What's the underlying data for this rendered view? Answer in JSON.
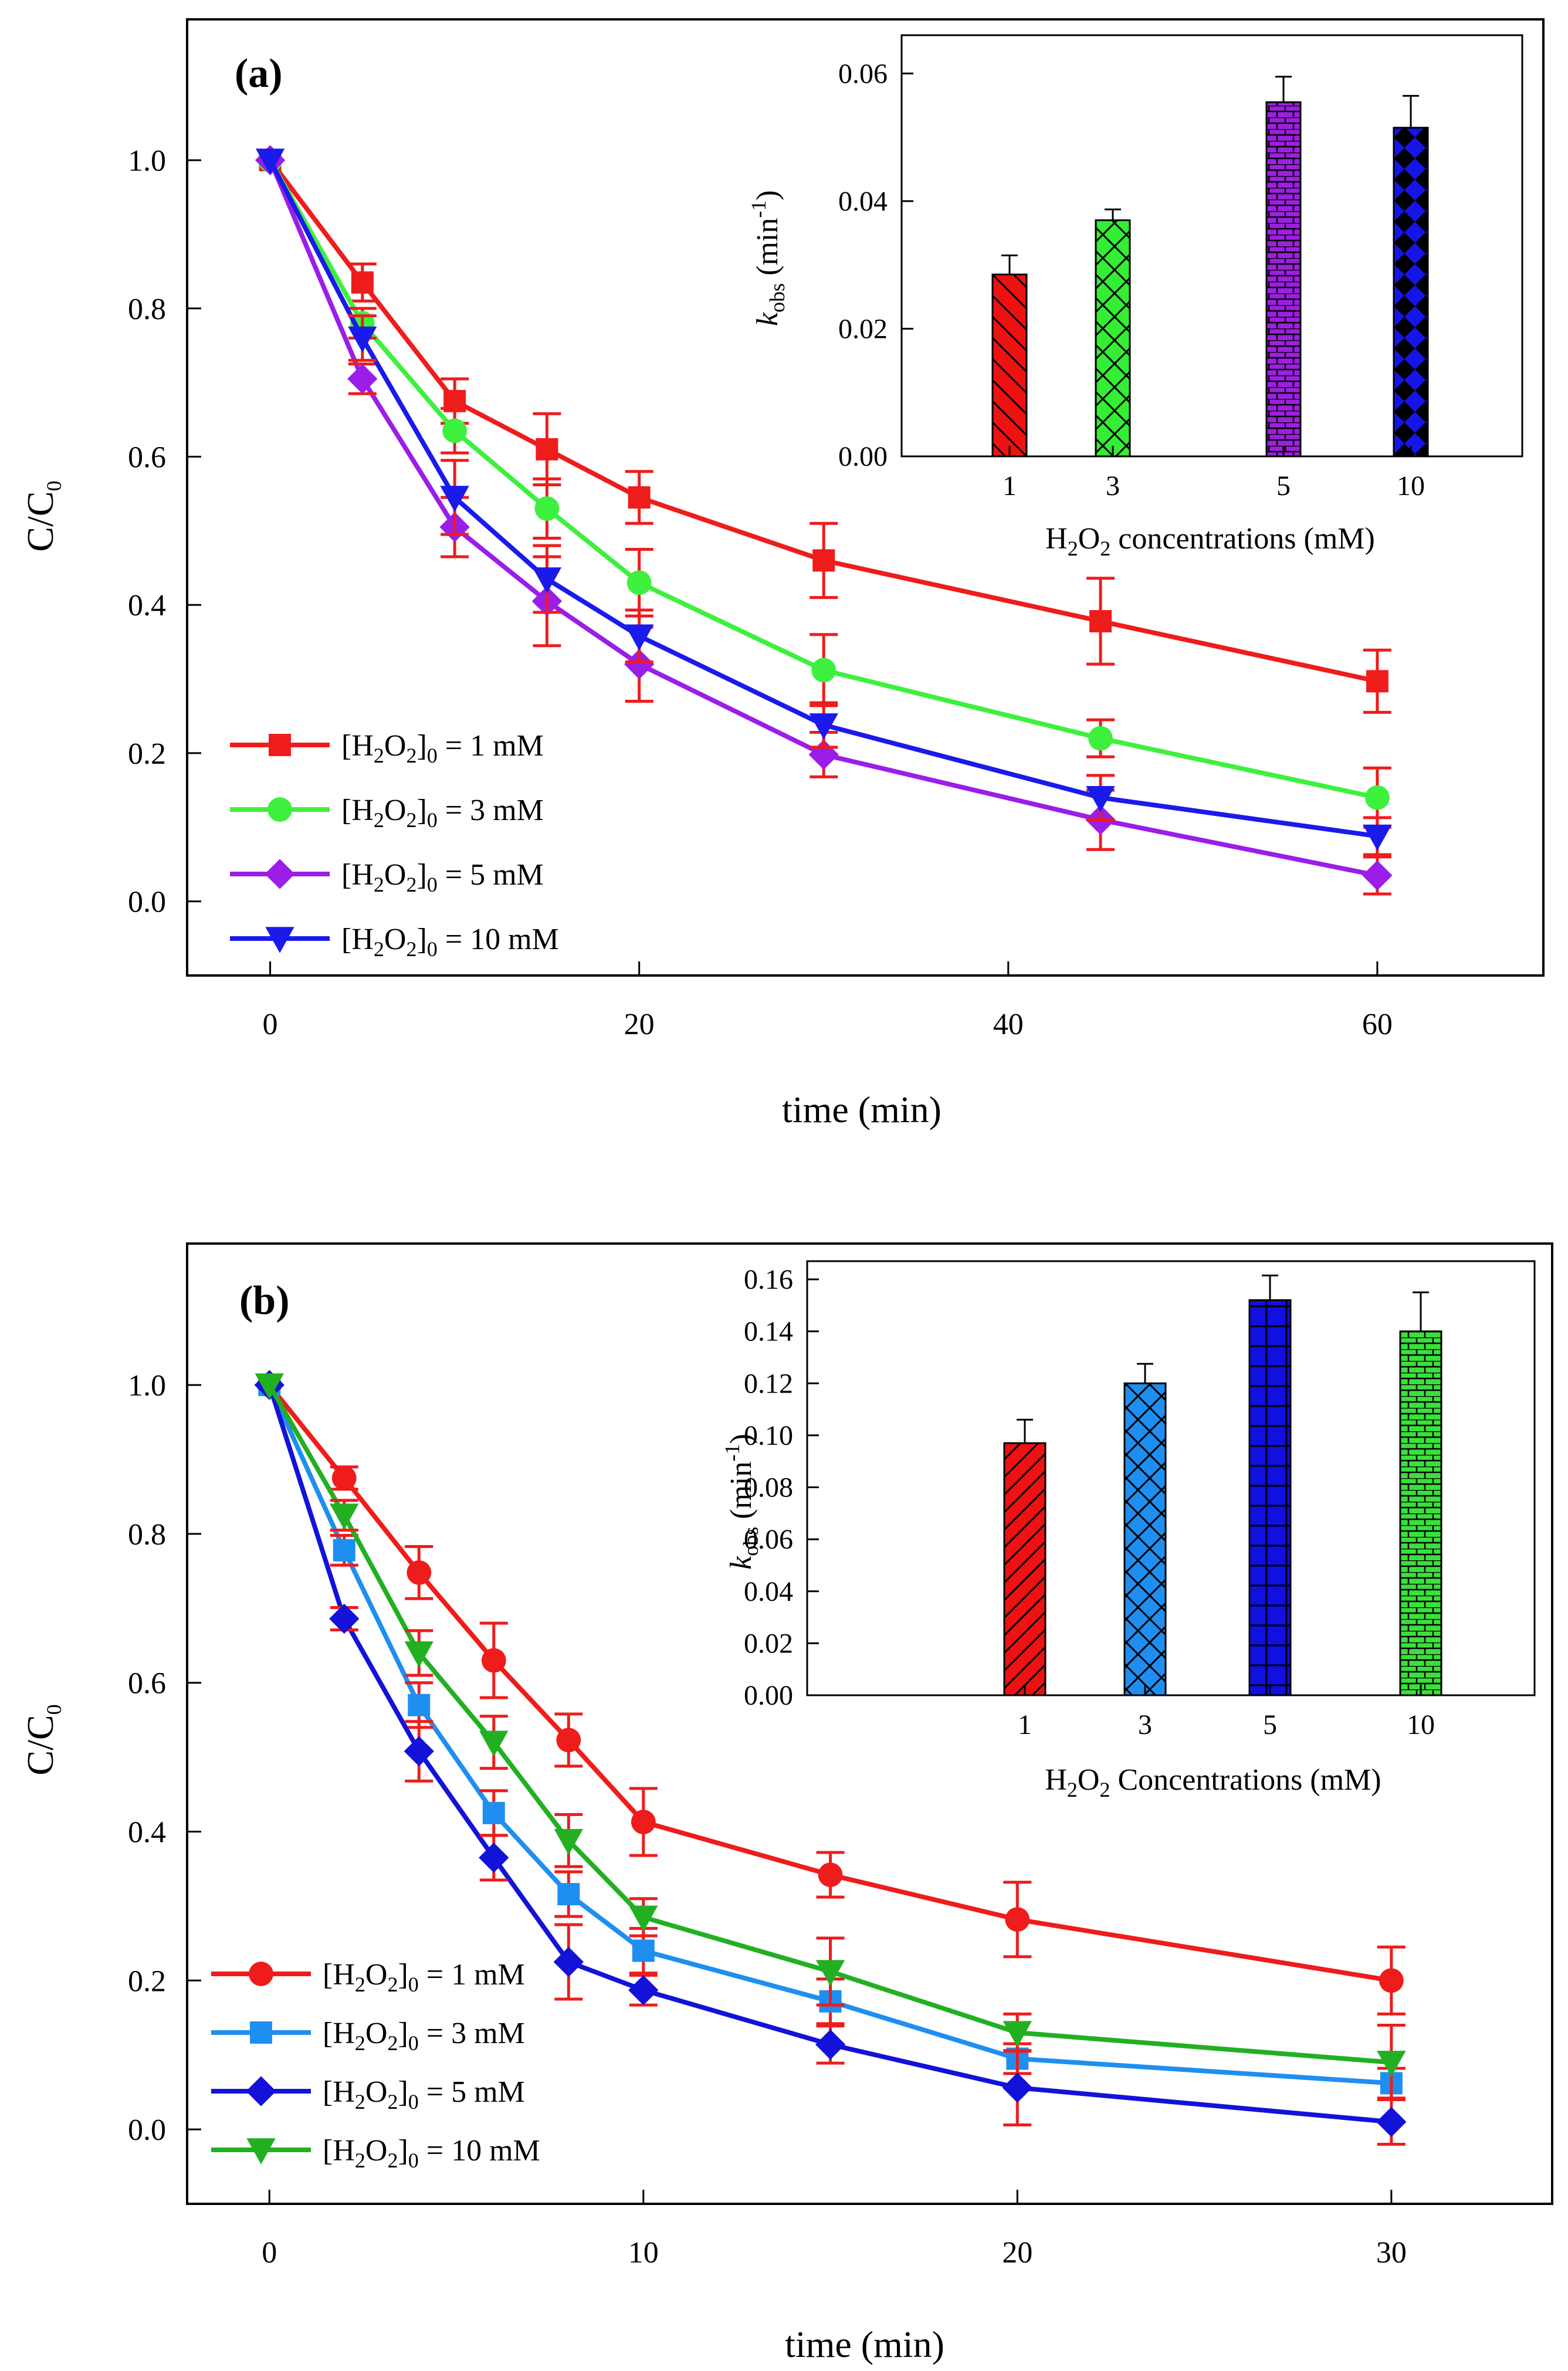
{
  "chart_data": [
    {
      "type": "line",
      "panel_label": "(a)",
      "xlabel": "time (min)",
      "ylabel": {
        "main": "C/C",
        "sub": "0"
      },
      "xlim": [
        -4.5,
        69
      ],
      "ylim": [
        -0.1,
        1.19
      ],
      "xticks": [
        0,
        20,
        40,
        60
      ],
      "yticks": [
        0.0,
        0.2,
        0.4,
        0.6,
        0.8,
        1.0
      ],
      "yticks_labels": [
        "0.0",
        "0.2",
        "0.4",
        "0.6",
        "0.8",
        "1.0"
      ],
      "x": [
        0,
        5,
        10,
        15,
        20,
        30,
        45,
        60
      ],
      "legend_position": "bottom-left",
      "series": [
        {
          "name": "[H2O2]0 = 1 mM",
          "legend": {
            "a": "[H",
            "b": "2",
            "c": "O",
            "d": "2",
            "e": "]",
            "f": "0",
            "g": " = 1 mM"
          },
          "color": "#ef1c1c",
          "marker": "square",
          "values": [
            1.0,
            0.835,
            0.675,
            0.61,
            0.545,
            0.46,
            0.378,
            0.297
          ],
          "errors": [
            0.0,
            0.025,
            0.03,
            0.048,
            0.035,
            0.05,
            0.058,
            0.042
          ]
        },
        {
          "name": "[H2O2]0 = 3 mM",
          "legend": {
            "a": "[H",
            "b": "2",
            "c": "O",
            "d": "2",
            "e": "]",
            "f": "0",
            "g": " = 3 mM"
          },
          "color": "#3ef03e",
          "marker": "circle",
          "values": [
            1.0,
            0.78,
            0.635,
            0.53,
            0.43,
            0.312,
            0.22,
            0.14
          ],
          "errors": [
            0.0,
            0.02,
            0.03,
            0.04,
            0.045,
            0.048,
            0.025,
            0.04
          ]
        },
        {
          "name": "[H2O2]0 = 5 mM",
          "legend": {
            "a": "[H",
            "b": "2",
            "c": "O",
            "d": "2",
            "e": "]",
            "f": "0",
            "g": " = 5 mM"
          },
          "color": "#9b1de8",
          "marker": "diamond",
          "values": [
            1.0,
            0.705,
            0.505,
            0.405,
            0.32,
            0.198,
            0.11,
            0.035
          ],
          "errors": [
            0.0,
            0.02,
            0.04,
            0.06,
            0.05,
            0.03,
            0.04,
            0.025
          ]
        },
        {
          "name": "[H2O2]0 = 10 mM",
          "legend": {
            "a": "[H",
            "b": "2",
            "c": "O",
            "d": "2",
            "e": "]",
            "f": "0",
            "g": " = 10 mM"
          },
          "color": "#1a1aeb",
          "marker": "triangle-down",
          "values": [
            1.0,
            0.76,
            0.545,
            0.435,
            0.358,
            0.238,
            0.14,
            0.088
          ],
          "errors": [
            0.0,
            0.03,
            0.05,
            0.045,
            0.035,
            0.03,
            0.03,
            0.025
          ]
        }
      ],
      "inset": {
        "type": "bar",
        "xlabel": {
          "a": "H",
          "b": "2",
          "c": "O",
          "d": "2",
          "e": " concentrations (mM)"
        },
        "ylabel": {
          "k": "k",
          "obs": "obs",
          "unit": " (min",
          "exp": "-1",
          "close": ")"
        },
        "categories": [
          "1",
          "3",
          "5",
          "10"
        ],
        "values": [
          0.0285,
          0.037,
          0.0555,
          0.0515
        ],
        "errors": [
          0.003,
          0.0017,
          0.004,
          0.005
        ],
        "colors": [
          "#ee1111",
          "#33ee33",
          "#9d1fe0",
          "#1515e8"
        ],
        "patterns": [
          "diag",
          "cross",
          "brick",
          "diamond"
        ],
        "ylim": [
          0,
          0.066
        ],
        "yticks": [
          0.0,
          0.02,
          0.04,
          0.06
        ],
        "yticks_labels": [
          "0.00",
          "0.02",
          "0.04",
          "0.06"
        ]
      }
    },
    {
      "type": "line",
      "panel_label": "(b)",
      "xlabel": "time (min)",
      "ylabel": {
        "main": "C/C",
        "sub": "0"
      },
      "xlim": [
        -2.2,
        34.3
      ],
      "ylim": [
        -0.1,
        1.19
      ],
      "xticks": [
        0,
        10,
        20,
        30
      ],
      "yticks": [
        0.0,
        0.2,
        0.4,
        0.6,
        0.8,
        1.0
      ],
      "yticks_labels": [
        "0.0",
        "0.2",
        "0.4",
        "0.6",
        "0.8",
        "1.0"
      ],
      "x": [
        0,
        2,
        4,
        6,
        8,
        10,
        15,
        20,
        30
      ],
      "legend_position": "bottom-left",
      "series": [
        {
          "name": "[H2O2]0 = 1 mM",
          "legend": {
            "a": "[H",
            "b": "2",
            "c": "O",
            "d": "2",
            "e": "]",
            "f": "0",
            "g": " = 1 mM"
          },
          "color": "#ef1c1c",
          "marker": "circle",
          "values": [
            1.0,
            0.875,
            0.748,
            0.63,
            0.523,
            0.413,
            0.342,
            0.282,
            0.2
          ],
          "errors": [
            0.0,
            0.015,
            0.035,
            0.05,
            0.035,
            0.045,
            0.03,
            0.05,
            0.045
          ]
        },
        {
          "name": "[H2O2]0 = 3 mM",
          "legend": {
            "a": "[H",
            "b": "2",
            "c": "O",
            "d": "2",
            "e": "]",
            "f": "0",
            "g": " = 3 mM"
          },
          "color": "#1e8ff0",
          "marker": "square",
          "values": [
            1.0,
            0.778,
            0.57,
            0.425,
            0.316,
            0.24,
            0.172,
            0.095,
            0.062
          ],
          "errors": [
            0.0,
            0.02,
            0.03,
            0.03,
            0.03,
            0.03,
            0.03,
            0.02,
            0.02
          ]
        },
        {
          "name": "[H2O2]0 = 5 mM",
          "legend": {
            "a": "[H",
            "b": "2",
            "c": "O",
            "d": "2",
            "e": "]",
            "f": "0",
            "g": " = 5 mM"
          },
          "color": "#1212d9",
          "marker": "diamond",
          "values": [
            1.0,
            0.686,
            0.508,
            0.365,
            0.225,
            0.187,
            0.114,
            0.056,
            0.01
          ],
          "errors": [
            0.0,
            0.015,
            0.04,
            0.03,
            0.05,
            0.02,
            0.025,
            0.05,
            0.03
          ]
        },
        {
          "name": "[H2O2]0 = 10 mM",
          "legend": {
            "a": "[H",
            "b": "2",
            "c": "O",
            "d": "2",
            "e": "]",
            "f": "0",
            "g": " = 10 mM"
          },
          "color": "#22b022",
          "marker": "triangle-down",
          "values": [
            1.0,
            0.825,
            0.64,
            0.52,
            0.388,
            0.285,
            0.212,
            0.13,
            0.09
          ],
          "errors": [
            0.0,
            0.02,
            0.03,
            0.035,
            0.035,
            0.025,
            0.045,
            0.025,
            0.05
          ]
        }
      ],
      "inset": {
        "type": "bar",
        "xlabel": {
          "a": "H",
          "b": "2",
          "c": "O",
          "d": "2",
          "e": " Concentrations (mM)"
        },
        "ylabel": {
          "k": "k",
          "obs": "obs",
          "unit": " (min",
          "exp": "-1",
          "close": ")"
        },
        "categories": [
          "1",
          "3",
          "5",
          "10"
        ],
        "values": [
          0.097,
          0.12,
          0.152,
          0.14
        ],
        "errors": [
          0.009,
          0.0075,
          0.0095,
          0.015
        ],
        "colors": [
          "#ee1111",
          "#1e8ff0",
          "#1010e0",
          "#3be03b"
        ],
        "patterns": [
          "diag",
          "cross",
          "grid",
          "brick"
        ],
        "ylim": [
          0,
          0.167
        ],
        "yticks": [
          0.0,
          0.02,
          0.04,
          0.06,
          0.08,
          0.1,
          0.12,
          0.14,
          0.16
        ],
        "yticks_labels": [
          "0.00",
          "0.02",
          "0.04",
          "0.06",
          "0.08",
          "0.10",
          "0.12",
          "0.14",
          "0.16"
        ]
      }
    }
  ]
}
